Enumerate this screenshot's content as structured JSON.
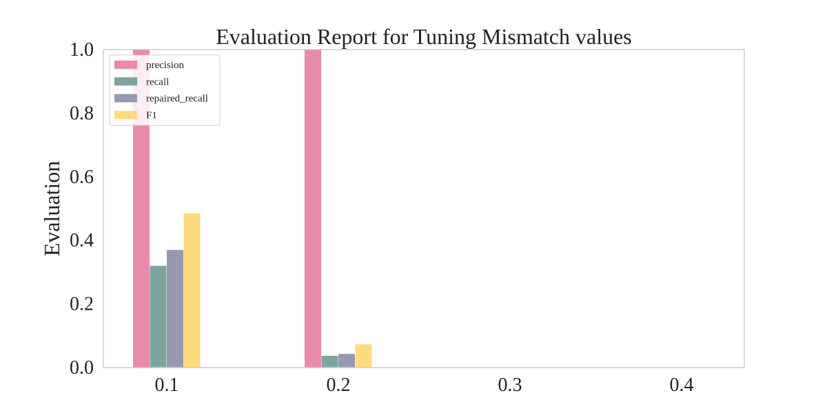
{
  "chart_data": {
    "type": "bar",
    "title": "Evaluation Report for Tuning Mismatch values",
    "xlabel": "",
    "ylabel": "Evaluation",
    "ylim": [
      0.0,
      1.0
    ],
    "yticks": [
      "0.0",
      "0.2",
      "0.4",
      "0.6",
      "0.8",
      "1.0"
    ],
    "categories": [
      "0.1",
      "0.2",
      "0.3",
      "0.4"
    ],
    "series": [
      {
        "name": "precision",
        "color": "#e98aab",
        "values": [
          1.0,
          1.0,
          0.0,
          0.0
        ]
      },
      {
        "name": "recall",
        "color": "#7ea59c",
        "values": [
          0.32,
          0.037,
          0.0,
          0.0
        ]
      },
      {
        "name": "repaired_recall",
        "color": "#9799ae",
        "values": [
          0.37,
          0.043,
          0.0,
          0.0
        ]
      },
      {
        "name": "F1",
        "color": "#ffdb7f",
        "values": [
          0.485,
          0.073,
          0.0,
          0.0
        ]
      }
    ],
    "grid": false,
    "legend_position": "upper-left"
  }
}
